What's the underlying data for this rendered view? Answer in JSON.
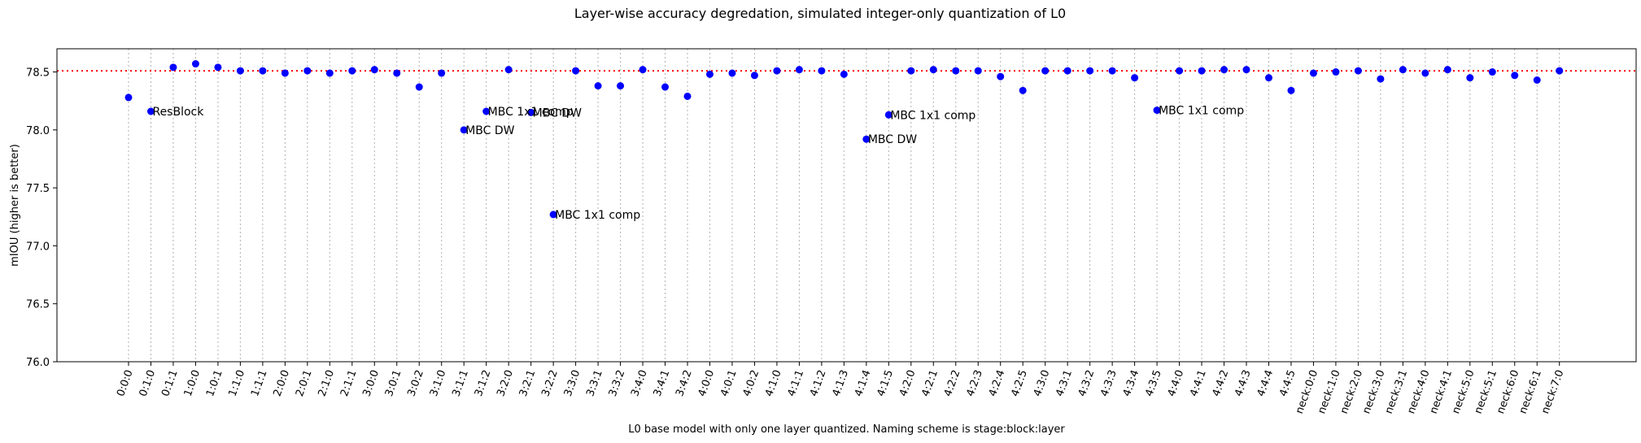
{
  "chart_data": {
    "type": "scatter",
    "title": "Layer-wise accuracy degredation, simulated integer-only quantization of L0",
    "xlabel": "L0 base model with only one layer quantized. Naming scheme is stage:block:layer",
    "ylabel": "mIOU (higher is better)",
    "ylim": [
      76.0,
      78.7
    ],
    "yticks": [
      "76.0",
      "76.5",
      "77.0",
      "77.5",
      "78.0",
      "78.5"
    ],
    "reference_line": 78.51,
    "point_color": "#0000ff",
    "reference_color": "#ff0000",
    "grid": "vertical dotted",
    "categories": [
      "0:0:0",
      "0:1:0",
      "0:1:1",
      "1:0:0",
      "1:0:1",
      "1:1:0",
      "1:1:1",
      "2:0:0",
      "2:0:1",
      "2:1:0",
      "2:1:1",
      "3:0:0",
      "3:0:1",
      "3:0:2",
      "3:1:0",
      "3:1:1",
      "3:1:2",
      "3:2:0",
      "3:2:1",
      "3:2:2",
      "3:3:0",
      "3:3:1",
      "3:3:2",
      "3:4:0",
      "3:4:1",
      "3:4:2",
      "4:0:0",
      "4:0:1",
      "4:0:2",
      "4:1:0",
      "4:1:1",
      "4:1:2",
      "4:1:3",
      "4:1:4",
      "4:1:5",
      "4:2:0",
      "4:2:1",
      "4:2:2",
      "4:2:3",
      "4:2:4",
      "4:2:5",
      "4:3:0",
      "4:3:1",
      "4:3:2",
      "4:3:3",
      "4:3:4",
      "4:3:5",
      "4:4:0",
      "4:4:1",
      "4:4:2",
      "4:4:3",
      "4:4:4",
      "4:4:5",
      "neck:0:0",
      "neck:1:0",
      "neck:2:0",
      "neck:3:0",
      "neck:3:1",
      "neck:4:0",
      "neck:4:1",
      "neck:5:0",
      "neck:5:1",
      "neck:6:0",
      "neck:6:1",
      "neck:7:0"
    ],
    "values": [
      78.28,
      78.16,
      78.54,
      78.57,
      78.54,
      78.51,
      78.51,
      78.49,
      78.51,
      78.49,
      78.51,
      78.52,
      78.49,
      78.37,
      78.49,
      78.0,
      78.16,
      78.52,
      78.15,
      77.27,
      78.51,
      78.38,
      78.38,
      78.52,
      78.37,
      78.29,
      78.48,
      78.49,
      78.47,
      78.51,
      78.52,
      78.51,
      78.48,
      77.92,
      78.13,
      78.51,
      78.52,
      78.51,
      78.51,
      78.46,
      78.34,
      78.51,
      78.51,
      78.51,
      78.51,
      78.45,
      78.17,
      78.51,
      78.51,
      78.52,
      78.52,
      78.45,
      78.34,
      78.49,
      78.5,
      78.51,
      78.44,
      78.52,
      78.49,
      78.52,
      78.45,
      78.5,
      78.47,
      78.43,
      78.51
    ],
    "annotations": [
      {
        "index": 1,
        "text": "ResBlock"
      },
      {
        "index": 15,
        "text": "MBC DW"
      },
      {
        "index": 16,
        "text": "MBC 1x1 comp"
      },
      {
        "index": 18,
        "text": "MBC DW"
      },
      {
        "index": 19,
        "text": "MBC 1x1 comp"
      },
      {
        "index": 33,
        "text": "MBC DW"
      },
      {
        "index": 34,
        "text": "MBC 1x1 comp"
      },
      {
        "index": 46,
        "text": "MBC 1x1 comp"
      }
    ]
  }
}
